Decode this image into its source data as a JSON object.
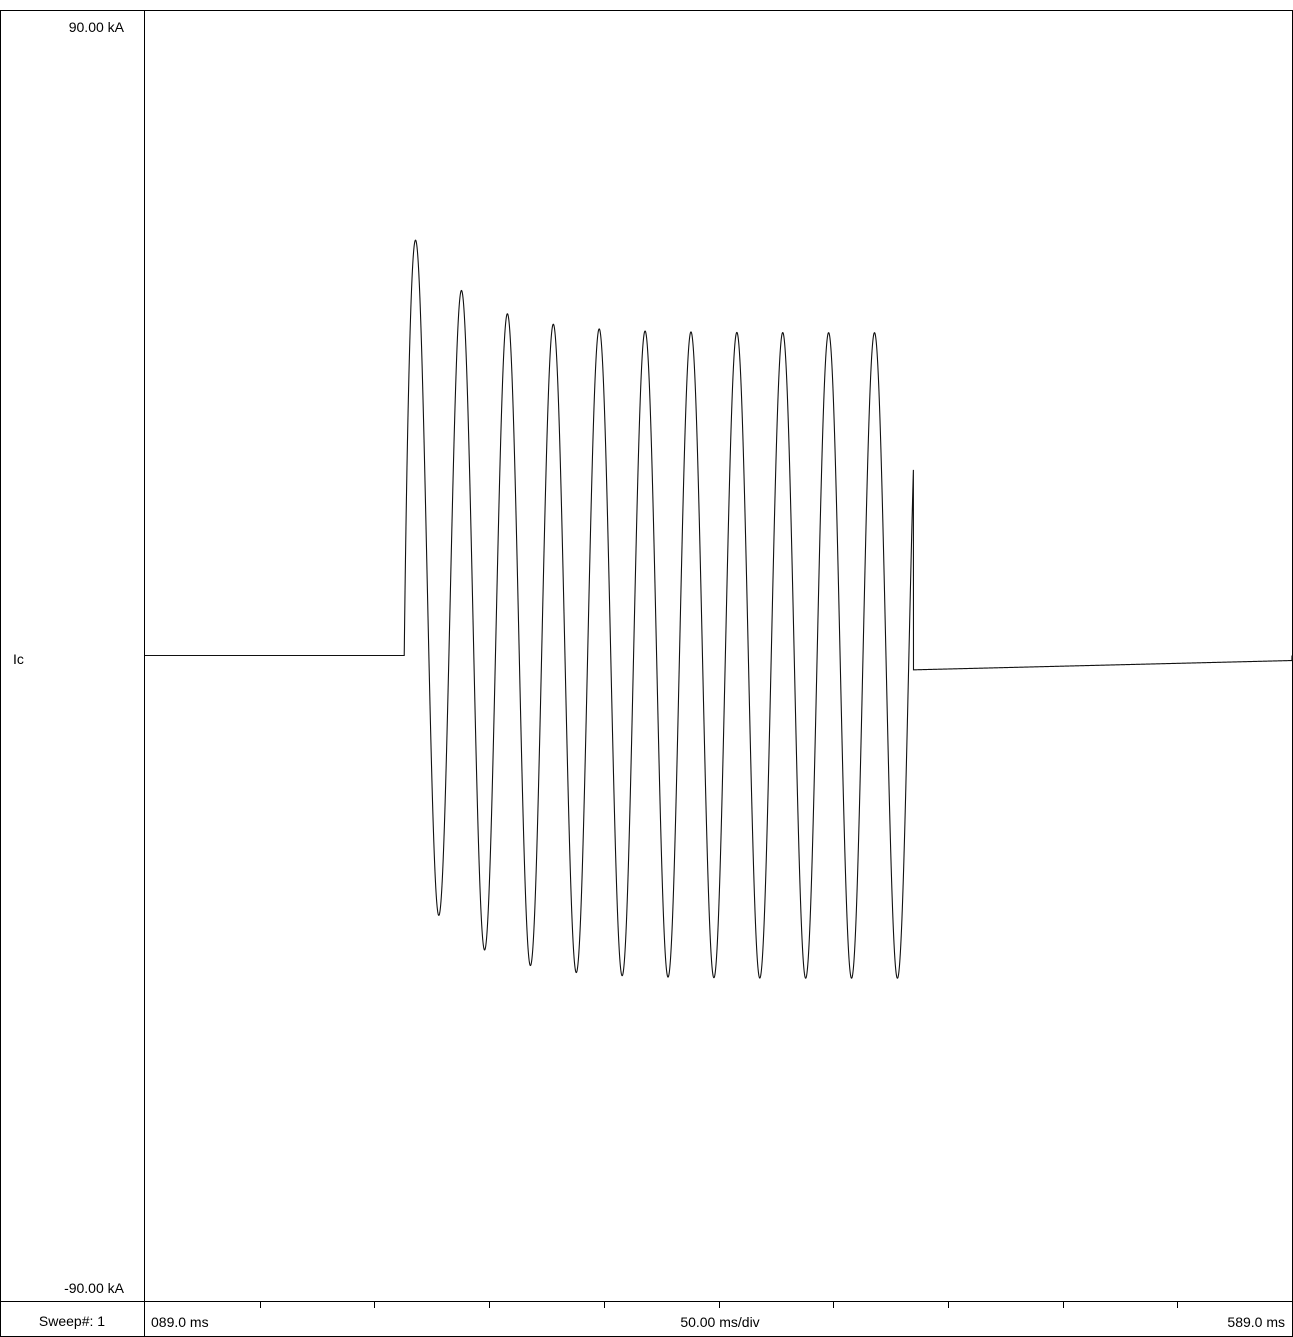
{
  "labels": {
    "y_max": "90.00 kA",
    "y_min": "-90.00 kA",
    "channel": "Ic",
    "sweep": "Sweep#: 1",
    "x_start": "089.0 ms",
    "x_div": "50.00 ms/div",
    "x_end": "589.0 ms"
  },
  "chart_data": {
    "type": "line",
    "channel": "Ic",
    "xlim": [
      89.0,
      589.0
    ],
    "ylim": [
      -90.0,
      90.0
    ],
    "x_unit": "ms",
    "y_unit": "kA",
    "x_division": 50.0,
    "grid": false,
    "series": [
      {
        "name": "Ic",
        "segments": [
          {
            "kind": "flat",
            "from": 89.0,
            "to": 202.0,
            "value": 0.0
          },
          {
            "kind": "ac",
            "start": 202.0,
            "end": 424.0,
            "frequency_hz": 50,
            "sym_peak": 45.0,
            "dc_offset0": 16.0,
            "dc_tau_ms": 25.0
          },
          {
            "kind": "flat",
            "from": 424.0,
            "to": 589.0,
            "value_start": -2.0,
            "value_end": -0.7
          }
        ],
        "peaks": [
          {
            "x": 210.6,
            "y": 60.9
          },
          {
            "x": 230.5,
            "y": 48.9
          },
          {
            "x": 250.4,
            "y": 42.0
          },
          {
            "x": 270.3,
            "y": 39.3
          },
          {
            "x": 290.2,
            "y": 38.3
          },
          {
            "x": 310.1,
            "y": 38.0
          },
          {
            "x": 330.0,
            "y": 38.1
          },
          {
            "x": 350.0,
            "y": 38.0
          },
          {
            "x": 370.0,
            "y": 38.1
          },
          {
            "x": 390.0,
            "y": 38.3
          },
          {
            "x": 410.0,
            "y": 38.6
          }
        ],
        "troughs": [
          {
            "x": 220.4,
            "y": -27.0
          },
          {
            "x": 240.4,
            "y": -37.9
          },
          {
            "x": 260.3,
            "y": -42.0
          },
          {
            "x": 280.2,
            "y": -43.7
          },
          {
            "x": 300.1,
            "y": -44.5
          },
          {
            "x": 320.0,
            "y": -44.6
          },
          {
            "x": 340.0,
            "y": -44.6
          },
          {
            "x": 360.0,
            "y": -44.5
          },
          {
            "x": 380.0,
            "y": -44.2
          },
          {
            "x": 400.0,
            "y": -43.6
          },
          {
            "x": 420.0,
            "y": -38.6
          }
        ]
      }
    ]
  }
}
